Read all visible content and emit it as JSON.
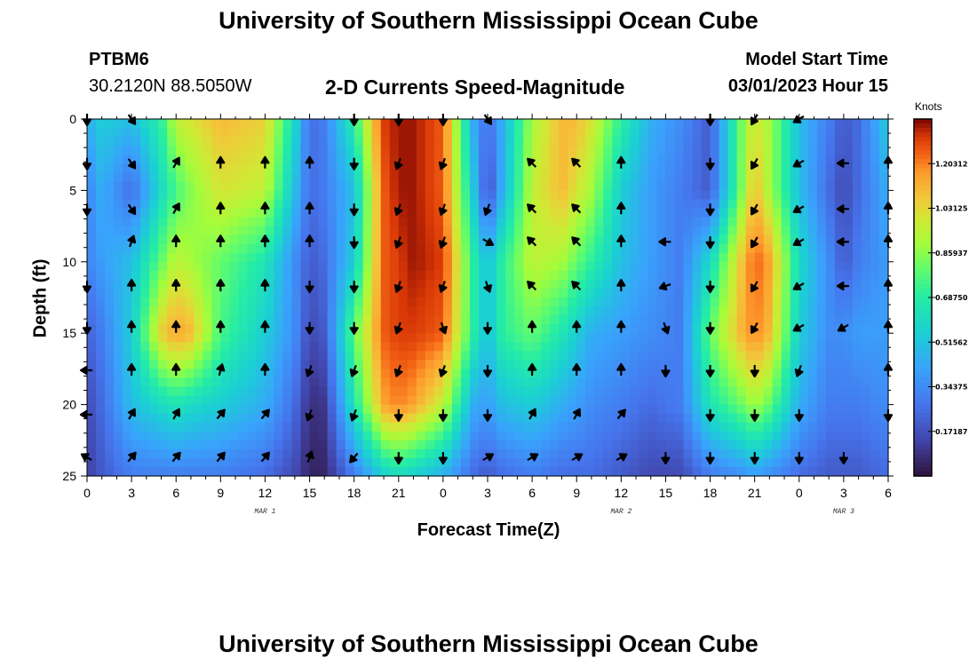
{
  "page": {
    "title": "University of Southern Mississippi Ocean Cube",
    "station": "PTBM6",
    "coords": "30.2120N  88.5050W",
    "plot_title": "2-D Currents Speed-Magnitude",
    "model_start_label": "Model Start Time",
    "model_start_value": "03/01/2023 Hour 15",
    "bottom_title": "University of Southern Mississippi Ocean Cube"
  },
  "chart_data": {
    "type": "heatmap",
    "title": "2-D Currents Speed-Magnitude",
    "xlabel": "Forecast Time(Z)",
    "ylabel": "Depth (ft)",
    "x_ticks": [
      "0",
      "3",
      "6",
      "9",
      "12",
      "15",
      "18",
      "21",
      "0",
      "3",
      "6",
      "9",
      "12",
      "15",
      "18",
      "21",
      "0",
      "3",
      "6"
    ],
    "x_hours": [
      0,
      3,
      6,
      9,
      12,
      15,
      18,
      21,
      24,
      27,
      30,
      33,
      36,
      39,
      42,
      45,
      48,
      51,
      54
    ],
    "xlim": [
      0,
      54
    ],
    "date_labels": [
      {
        "text": "MAR 1",
        "hour": 12
      },
      {
        "text": "MAR 2",
        "hour": 36
      },
      {
        "text": "MAR 3",
        "hour": 51
      }
    ],
    "y_ticks": [
      "0",
      "5",
      "10",
      "15",
      "20",
      "25"
    ],
    "y_values": [
      0,
      5,
      10,
      15,
      20,
      25
    ],
    "ylim": [
      0,
      25
    ],
    "colorbar": {
      "label": "Knots",
      "range": [
        0,
        1.375
      ],
      "ticks": [
        "1.20312",
        "1.03125",
        "0.85937",
        "0.68750",
        "0.51562",
        "0.34375",
        "0.17187"
      ],
      "tick_values": [
        1.20312,
        1.03125,
        0.85937,
        0.6875,
        0.51562,
        0.34375,
        0.17187
      ]
    },
    "speed_profile": {
      "hours": [
        0,
        1,
        3,
        5,
        6,
        7,
        9,
        12,
        14,
        15,
        16,
        18,
        20,
        21,
        22,
        24,
        26,
        27,
        28,
        30,
        32,
        33,
        34,
        36,
        38,
        40,
        42,
        44,
        45,
        46,
        48,
        50,
        51,
        52,
        54
      ],
      "depths": [
        0,
        5,
        10,
        15,
        20,
        25
      ],
      "values_knots": [
        [
          0.45,
          0.32,
          0.32,
          0.22,
          0.15,
          0.12
        ],
        [
          0.55,
          0.45,
          0.4,
          0.3,
          0.25,
          0.2
        ],
        [
          0.5,
          0.25,
          0.5,
          0.55,
          0.5,
          0.3
        ],
        [
          0.7,
          0.6,
          0.8,
          1.05,
          0.6,
          0.3
        ],
        [
          0.95,
          0.75,
          0.95,
          1.15,
          0.65,
          0.3
        ],
        [
          1.0,
          0.85,
          0.9,
          1.1,
          0.6,
          0.3
        ],
        [
          1.1,
          1.0,
          0.8,
          0.75,
          0.55,
          0.3
        ],
        [
          1.05,
          0.95,
          0.65,
          0.55,
          0.45,
          0.25
        ],
        [
          0.6,
          0.5,
          0.35,
          0.35,
          0.25,
          0.15
        ],
        [
          0.25,
          0.25,
          0.2,
          0.15,
          0.08,
          0.05
        ],
        [
          0.3,
          0.3,
          0.25,
          0.2,
          0.1,
          0.05
        ],
        [
          0.7,
          0.5,
          0.55,
          0.8,
          0.65,
          0.3
        ],
        [
          1.3,
          1.25,
          1.25,
          1.25,
          1.15,
          0.55
        ],
        [
          1.35,
          1.35,
          1.3,
          1.3,
          1.2,
          0.6
        ],
        [
          1.35,
          1.35,
          1.35,
          1.3,
          1.15,
          0.55
        ],
        [
          1.25,
          1.25,
          1.3,
          1.25,
          0.95,
          0.45
        ],
        [
          0.45,
          0.55,
          0.7,
          0.7,
          0.45,
          0.25
        ],
        [
          0.25,
          0.15,
          0.5,
          0.5,
          0.4,
          0.2
        ],
        [
          0.45,
          0.45,
          0.7,
          0.7,
          0.5,
          0.25
        ],
        [
          0.9,
          0.95,
          0.95,
          0.8,
          0.55,
          0.3
        ],
        [
          1.1,
          1.1,
          0.9,
          0.65,
          0.45,
          0.25
        ],
        [
          1.1,
          1.0,
          0.8,
          0.55,
          0.4,
          0.25
        ],
        [
          1.0,
          0.9,
          0.7,
          0.45,
          0.35,
          0.25
        ],
        [
          0.7,
          0.55,
          0.5,
          0.4,
          0.3,
          0.2
        ],
        [
          0.45,
          0.4,
          0.4,
          0.35,
          0.25,
          0.15
        ],
        [
          0.35,
          0.3,
          0.3,
          0.3,
          0.3,
          0.15
        ],
        [
          0.2,
          0.2,
          0.6,
          0.8,
          0.65,
          0.3
        ],
        [
          0.8,
          0.8,
          1.05,
          1.1,
          0.8,
          0.35
        ],
        [
          1.0,
          1.1,
          1.25,
          1.2,
          0.9,
          0.4
        ],
        [
          0.9,
          0.9,
          1.15,
          1.1,
          0.8,
          0.35
        ],
        [
          0.5,
          0.5,
          0.6,
          0.55,
          0.45,
          0.25
        ],
        [
          0.3,
          0.25,
          0.35,
          0.35,
          0.3,
          0.2
        ],
        [
          0.2,
          0.15,
          0.2,
          0.35,
          0.3,
          0.2
        ],
        [
          0.25,
          0.25,
          0.3,
          0.4,
          0.3,
          0.2
        ],
        [
          0.55,
          0.45,
          0.4,
          0.4,
          0.35,
          0.25
        ]
      ]
    },
    "direction_arrows": {
      "hours": [
        0,
        3,
        6,
        9,
        12,
        15,
        18,
        21,
        24,
        27,
        30,
        33,
        36,
        39,
        42,
        45,
        48,
        51,
        54
      ],
      "depths": [
        0,
        3.1,
        6.3,
        8.6,
        11.7,
        14.6,
        17.6,
        20.7,
        23.7
      ],
      "angle_deg": [
        [
          180,
          145,
          null,
          null,
          null,
          null,
          180,
          180,
          180,
          145,
          null,
          null,
          null,
          null,
          180,
          210,
          240,
          null,
          null
        ],
        [
          180,
          145,
          30,
          0,
          0,
          0,
          180,
          200,
          200,
          null,
          315,
          315,
          0,
          null,
          180,
          210,
          240,
          270,
          0
        ],
        [
          180,
          145,
          30,
          0,
          0,
          0,
          180,
          200,
          200,
          200,
          315,
          315,
          0,
          null,
          180,
          210,
          240,
          270,
          0
        ],
        [
          null,
          20,
          0,
          0,
          0,
          0,
          180,
          200,
          200,
          120,
          315,
          315,
          0,
          270,
          180,
          210,
          240,
          270,
          0
        ],
        [
          180,
          0,
          0,
          0,
          0,
          180,
          180,
          200,
          200,
          160,
          315,
          315,
          0,
          250,
          180,
          210,
          240,
          270,
          0
        ],
        [
          180,
          0,
          0,
          0,
          0,
          180,
          180,
          200,
          160,
          180,
          0,
          0,
          0,
          160,
          180,
          210,
          240,
          240,
          0
        ],
        [
          270,
          0,
          0,
          15,
          0,
          200,
          200,
          200,
          200,
          180,
          0,
          0,
          0,
          180,
          180,
          180,
          200,
          null,
          0
        ],
        [
          270,
          30,
          30,
          40,
          40,
          200,
          200,
          180,
          180,
          180,
          30,
          30,
          40,
          null,
          180,
          180,
          180,
          null,
          180
        ],
        [
          300,
          40,
          40,
          40,
          40,
          20,
          220,
          180,
          180,
          60,
          60,
          60,
          60,
          180,
          180,
          180,
          180,
          180,
          null
        ]
      ]
    }
  }
}
